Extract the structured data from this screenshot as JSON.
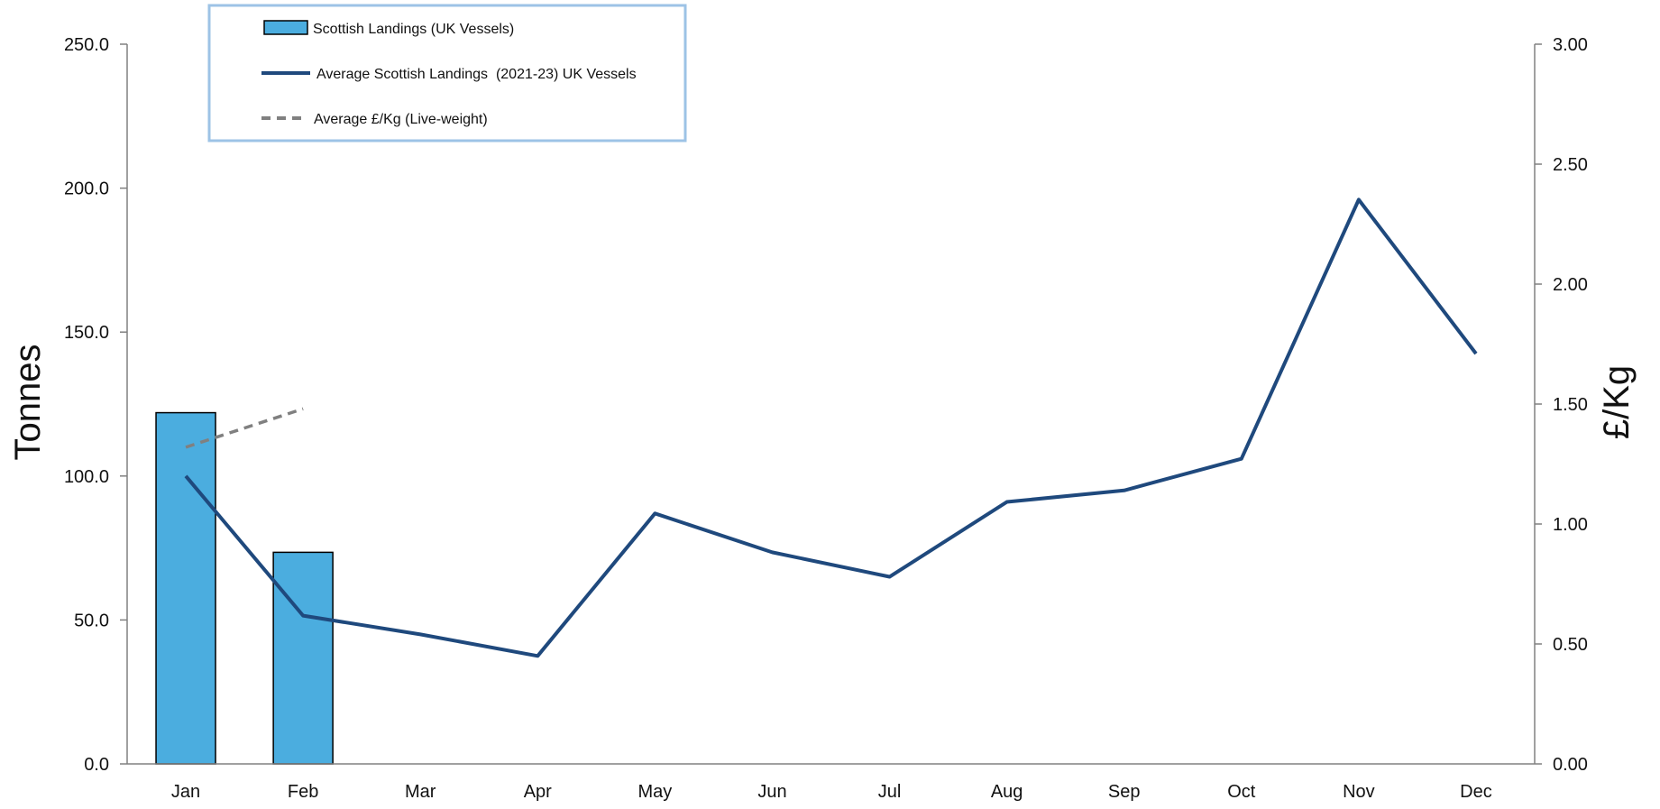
{
  "chart_data": {
    "type": "bar",
    "title": "",
    "categories": [
      "Jan",
      "Feb",
      "Mar",
      "Apr",
      "May",
      "Jun",
      "Jul",
      "Aug",
      "Sep",
      "Oct",
      "Nov",
      "Dec"
    ],
    "ylabel": "Tonnes",
    "y2label": "£/Kg",
    "ylim": [
      0,
      250
    ],
    "y2lim": [
      0,
      3
    ],
    "y_ticks": [
      "0.0",
      "50.0",
      "100.0",
      "150.0",
      "200.0",
      "250.0"
    ],
    "y2_ticks": [
      "0.00",
      "0.50",
      "1.00",
      "1.50",
      "2.00",
      "2.50",
      "3.00"
    ],
    "grid": false,
    "legend_position": "top-left",
    "series": [
      {
        "name": "Scottish Landings (UK Vessels)",
        "type": "bar",
        "axis": "left",
        "values": [
          122.0,
          73.5,
          null,
          null,
          null,
          null,
          null,
          null,
          null,
          null,
          null,
          null
        ],
        "color": "#4BADDF"
      },
      {
        "name": "Average Scottish Landings  (2021-23) UK Vessels",
        "type": "line",
        "axis": "left",
        "values": [
          100.0,
          51.5,
          45.0,
          37.5,
          87.0,
          73.5,
          65.0,
          91.0,
          95.0,
          106.0,
          196.0,
          142.5
        ],
        "color": "#1F497D"
      },
      {
        "name": "Average £/Kg (Live-weight)",
        "type": "line",
        "style": "dashed",
        "axis": "right",
        "values": [
          1.32,
          1.48,
          null,
          null,
          null,
          null,
          null,
          null,
          null,
          null,
          null,
          null
        ],
        "color": "#808080"
      }
    ]
  }
}
